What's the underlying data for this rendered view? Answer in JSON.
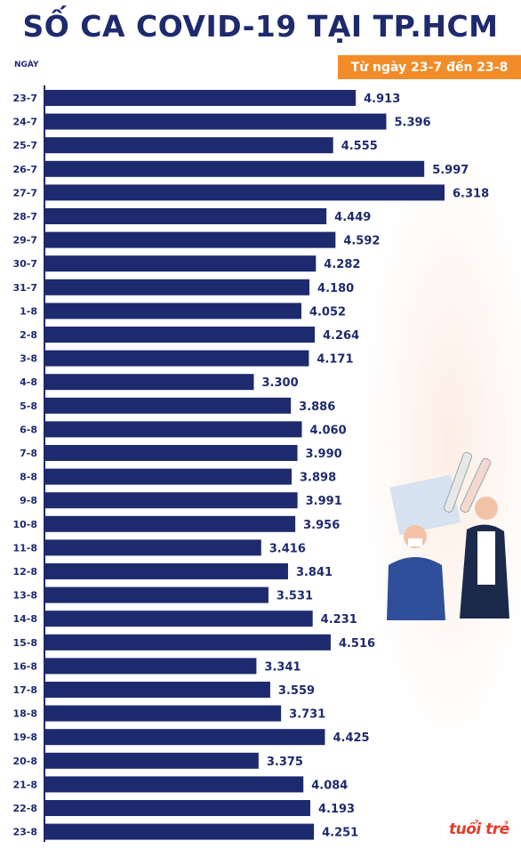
{
  "header": {
    "title": "SỐ CA COVID-19 TẠI TP.HCM",
    "y_axis_label": "NGÀY",
    "date_range": "Từ ngày 23-7 đến 23-8"
  },
  "colors": {
    "bar": "#1e2a6e",
    "accent": "#f28c28",
    "logo": "#e63a2b"
  },
  "logo": {
    "text": "tuổi trẻ"
  },
  "chart_data": {
    "type": "bar",
    "orientation": "horizontal",
    "title": "SỐ CA COVID-19 TẠI TP.HCM",
    "subtitle": "Từ ngày 23-7 đến 23-8",
    "ylabel": "NGÀY",
    "categories": [
      "23-7",
      "24-7",
      "25-7",
      "26-7",
      "27-7",
      "28-7",
      "29-7",
      "30-7",
      "31-7",
      "1-8",
      "2-8",
      "3-8",
      "4-8",
      "5-8",
      "6-8",
      "7-8",
      "8-8",
      "9-8",
      "10-8",
      "11-8",
      "12-8",
      "13-8",
      "14-8",
      "15-8",
      "16-8",
      "17-8",
      "18-8",
      "19-8",
      "20-8",
      "21-8",
      "22-8",
      "23-8"
    ],
    "values": [
      4913,
      5396,
      4555,
      5997,
      6318,
      4449,
      4592,
      4282,
      4180,
      4052,
      4264,
      4171,
      3300,
      3886,
      4060,
      3990,
      3898,
      3991,
      3956,
      3416,
      3841,
      3531,
      4231,
      4516,
      3341,
      3559,
      3731,
      4425,
      3375,
      4084,
      4193,
      4251
    ],
    "value_labels": [
      "4.913",
      "5.396",
      "4.555",
      "5.997",
      "6.318",
      "4.449",
      "4.592",
      "4.282",
      "4.180",
      "4.052",
      "4.264",
      "4.171",
      "3.300",
      "3.886",
      "4.060",
      "3.990",
      "3.898",
      "3.991",
      "3.956",
      "3.416",
      "3.841",
      "3.531",
      "4.231",
      "4.516",
      "3.341",
      "3.559",
      "3.731",
      "4.425",
      "3.375",
      "4.084",
      "4.193",
      "4.251"
    ],
    "xlim": [
      0,
      6318
    ],
    "grid": false,
    "legend": "none"
  }
}
